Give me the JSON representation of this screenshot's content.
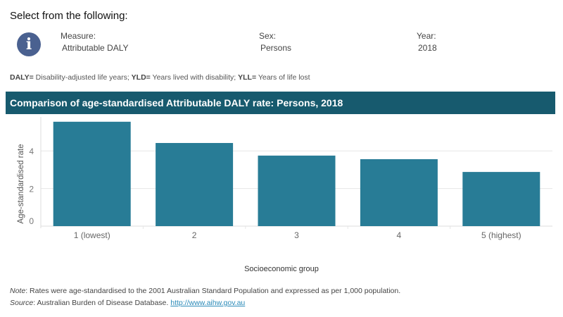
{
  "header": {
    "title": "Select from the following:"
  },
  "filters": [
    {
      "label": "Measure:",
      "value": "Attributable DALY"
    },
    {
      "label": "Sex:",
      "value": "Persons"
    },
    {
      "label": "Year:",
      "value": "2018"
    }
  ],
  "legend": {
    "t1": "DALY=",
    "d1": " Disability-adjusted life years; ",
    "t2": "YLD=",
    "d2": " Years lived with disability; ",
    "t3": "YLL=",
    "d3": " Years of life lost"
  },
  "icons": {
    "info": "info-icon"
  },
  "colors": {
    "bar": "#287c96",
    "title_bar": "#175a6e",
    "info": "#4a6190"
  },
  "chart_data": {
    "type": "bar",
    "title": "Comparison of age-standardised Attributable DALY rate:  Persons, 2018",
    "xlabel": "Socioeconomic group",
    "ylabel": "Age-standardised rate",
    "categories": [
      "1 (lowest)",
      "2",
      "3",
      "4",
      "5 (highest)"
    ],
    "values": [
      5.55,
      4.42,
      3.75,
      3.56,
      2.88
    ],
    "yticks": [
      "0",
      "2",
      "4"
    ],
    "ylim": [
      0,
      5.8
    ],
    "grid": true
  },
  "footer": {
    "note_label": "Note",
    "note": ": Rates were age-standardised to the 2001 Australian Standard Population and expressed as per 1,000 population.",
    "source_label": "Source",
    "source": ": Australian Burden of Disease Database. ",
    "link": "http://www.aihw.gov.au"
  }
}
